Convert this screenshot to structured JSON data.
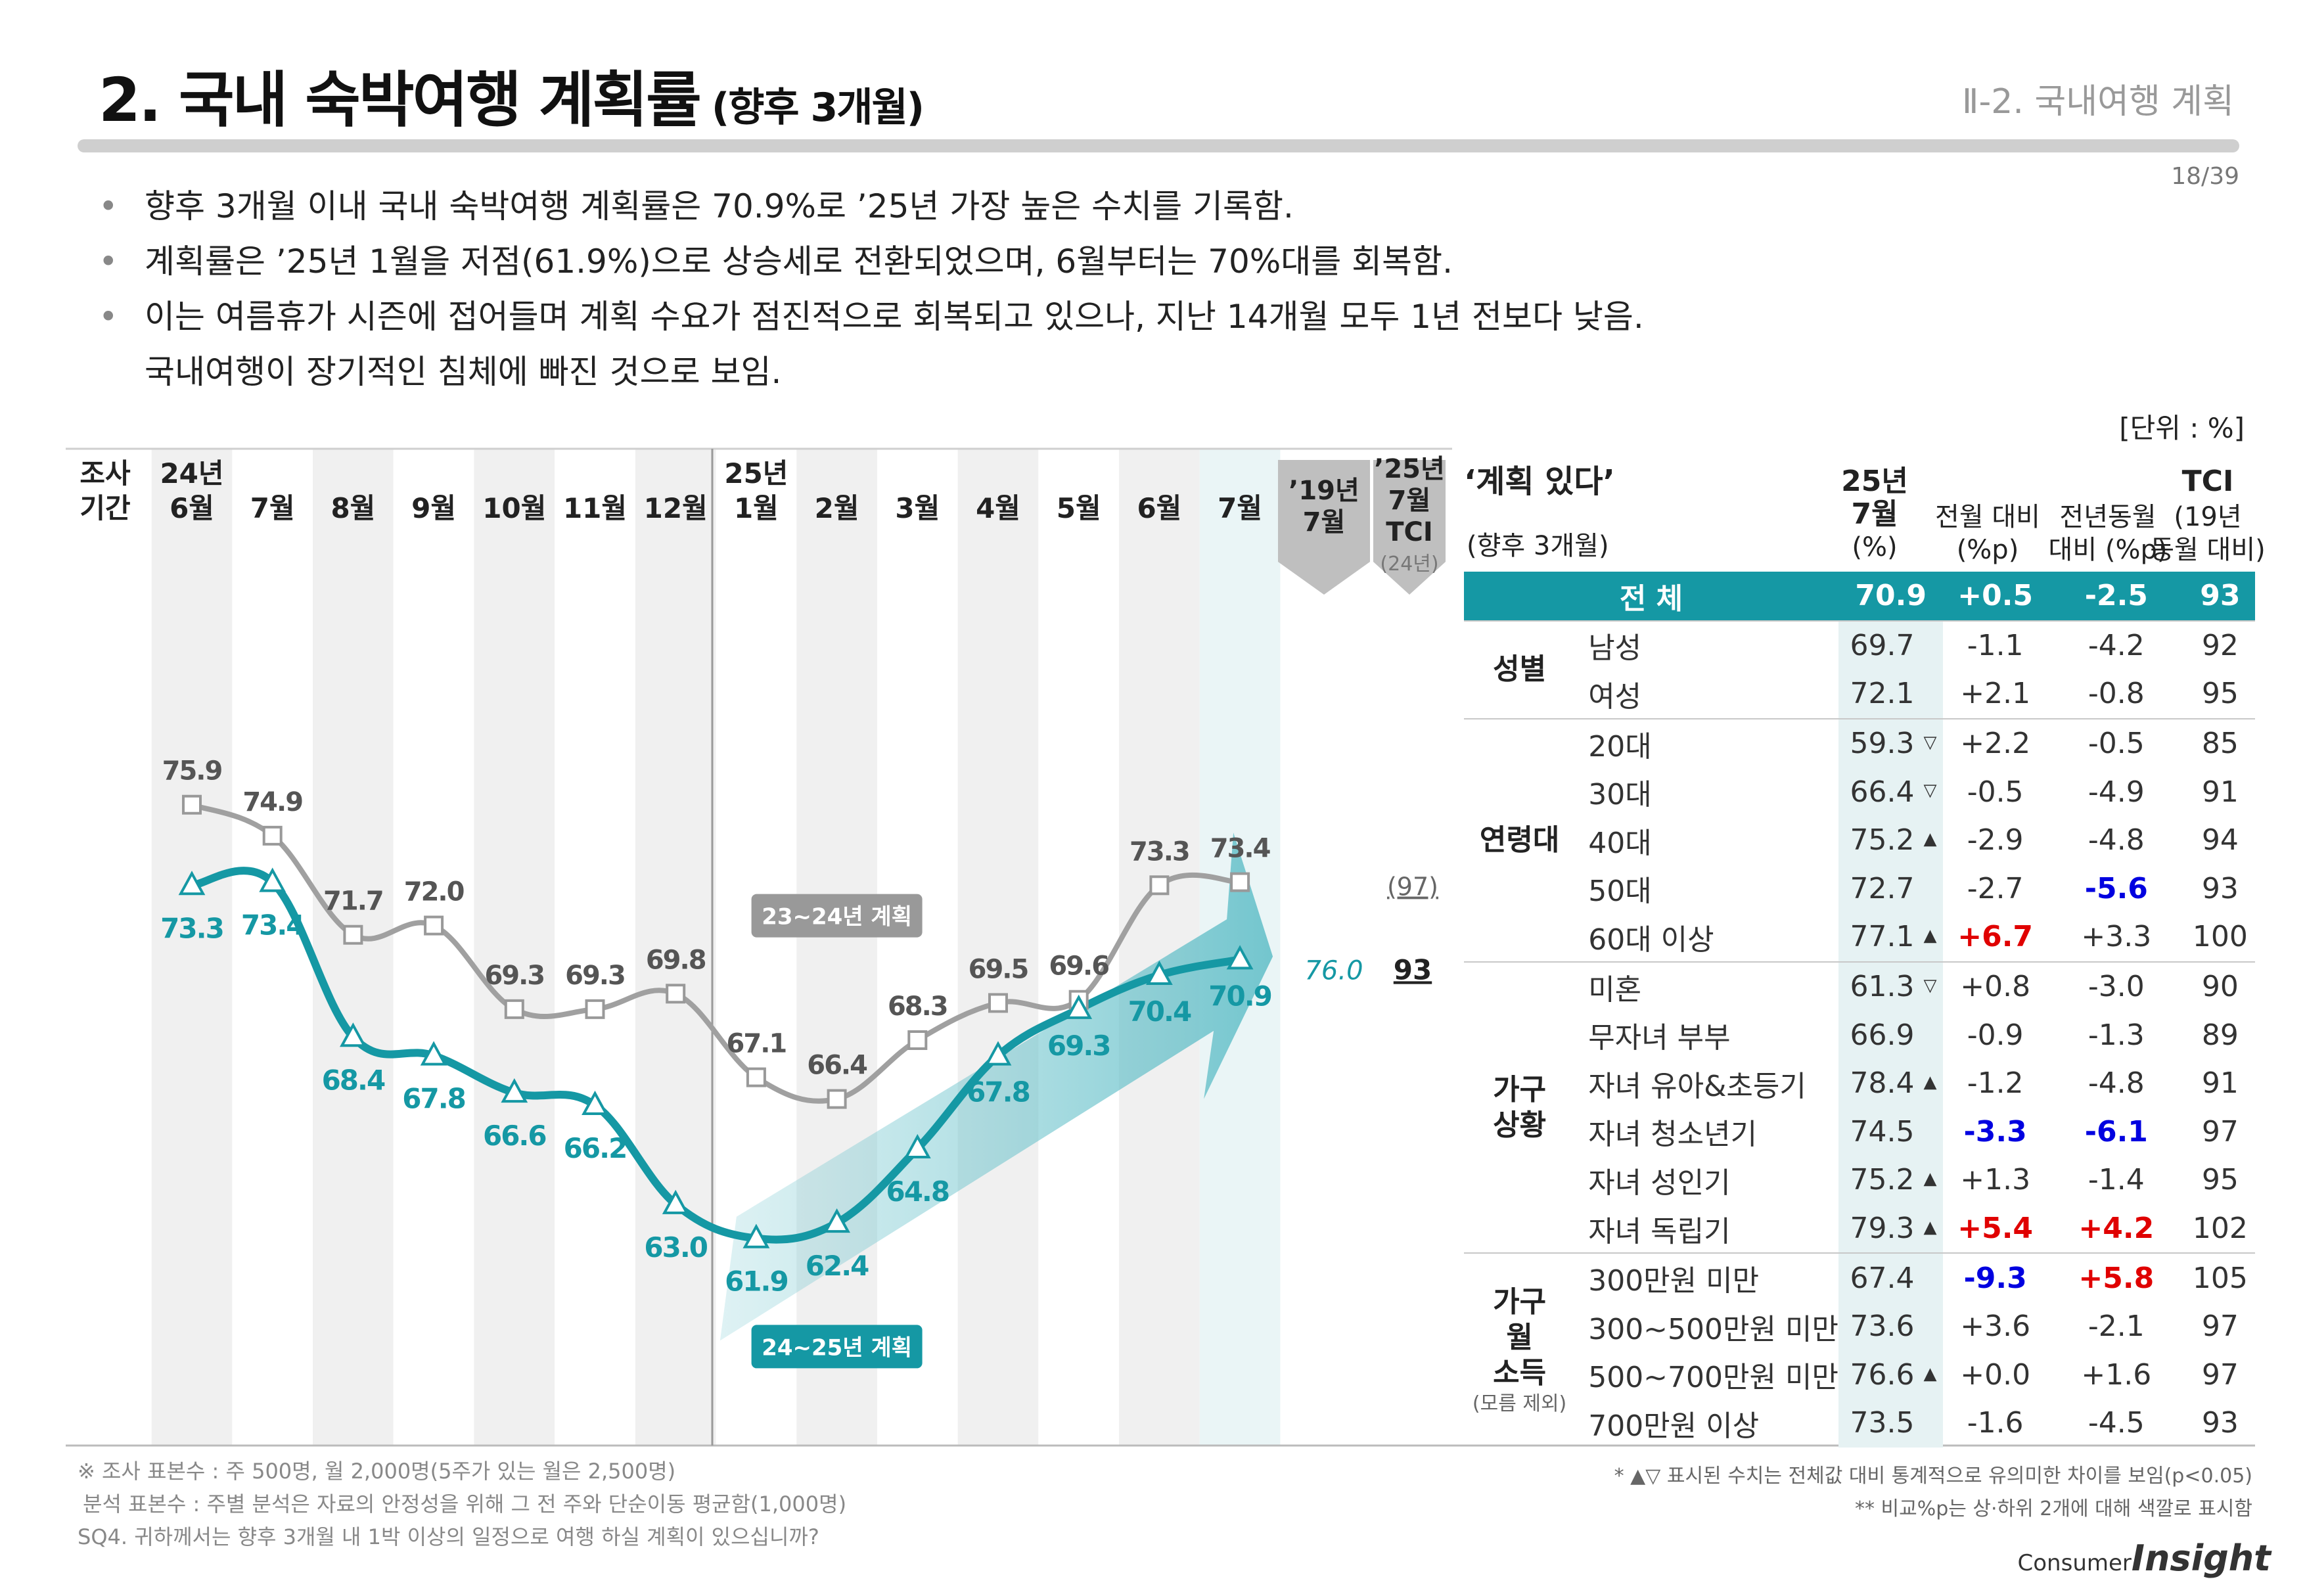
{
  "header": {
    "title": "2. 국내 숙박여행 계획률",
    "subtitle": "(향후 3개월)",
    "section": "Ⅱ-2. 국내여행 계획",
    "page": "18/39"
  },
  "bullets": [
    "향후 3개월 이내 국내 숙박여행 계획률은 70.9%로 ’25년 가장 높은 수치를 기록함.",
    "계획률은 ’25년 1월을 저점(61.9%)으로 상승세로 전환되었으며, 6월부터는 70%대를 회복함.",
    "이는 여름휴가 시즌에 접어들며 계획 수요가 점진적으로 회복되고 있으나, 지난 14개월 모두 1년 전보다 낮음.",
    "국내여행이 장기적인 침체에 빠진 것으로 보임."
  ],
  "unit": "[단위 : %]",
  "chart_data": {
    "type": "line",
    "period_label_1": "조사",
    "period_label_2": "기간",
    "categories": [
      {
        "year": "24년",
        "month": "6월"
      },
      {
        "year": "",
        "month": "7월"
      },
      {
        "year": "",
        "month": "8월"
      },
      {
        "year": "",
        "month": "9월"
      },
      {
        "year": "",
        "month": "10월"
      },
      {
        "year": "",
        "month": "11월"
      },
      {
        "year": "",
        "month": "12월"
      },
      {
        "year": "25년",
        "month": "1월"
      },
      {
        "year": "",
        "month": "2월"
      },
      {
        "year": "",
        "month": "3월"
      },
      {
        "year": "",
        "month": "4월"
      },
      {
        "year": "",
        "month": "5월"
      },
      {
        "year": "",
        "month": "6월"
      },
      {
        "year": "",
        "month": "7월"
      }
    ],
    "series": [
      {
        "name": "23~24년 계획",
        "color": "#a0a0a0",
        "values": [
          75.9,
          74.9,
          71.7,
          72.0,
          69.3,
          69.3,
          69.8,
          67.1,
          66.4,
          68.3,
          69.5,
          69.6,
          73.3,
          73.4
        ],
        "labels": [
          "75.9",
          "74.9",
          "71.7",
          "72.0",
          "69.3",
          "69.3",
          "69.8",
          "67.1",
          "66.4",
          "68.3",
          "69.5",
          "69.6",
          "73.3",
          "73.4"
        ]
      },
      {
        "name": "24~25년 계획",
        "color": "#1598a4",
        "values": [
          73.3,
          73.4,
          68.4,
          67.8,
          66.6,
          66.2,
          63.0,
          61.9,
          62.4,
          64.8,
          67.8,
          69.3,
          70.4,
          70.9
        ],
        "labels": [
          "73.3",
          "73.4",
          "68.4",
          "67.8",
          "66.6",
          "66.2",
          "63.0",
          "61.9",
          "62.4",
          "64.8",
          "67.8",
          "69.3",
          "70.4",
          "70.9"
        ]
      }
    ],
    "compare_col": {
      "header_1": "’19년",
      "header_2": "7월",
      "value": 76.0,
      "label": "76.0"
    },
    "tci_col": {
      "header_1": "’25년",
      "header_2": "7월",
      "header_3": "TCI",
      "note": "(24년)",
      "prev": "(97)",
      "value": "93"
    },
    "ylim": [
      58,
      80
    ]
  },
  "table": {
    "title": "‘계획 있다’",
    "title_sub": "(향후 3개월)",
    "headers": {
      "c1_a": "25년",
      "c1_b": "7월",
      "c1_c": "(%)",
      "c2_a": "전월 대비",
      "c2_b": "(%p)",
      "c3_a": "전년동월",
      "c3_b": "대비 (%p)",
      "c4_a": "TCI",
      "c4_b": "(19년",
      "c4_c": "동월 대비)"
    },
    "total": {
      "label": "전 체",
      "value": "70.9",
      "mom": "+0.5",
      "yoy": "-2.5",
      "tci": "93"
    },
    "groups": [
      {
        "name": "성별",
        "rows": [
          {
            "item": "남성",
            "value": "69.7",
            "mark": "",
            "mom": "-1.1",
            "yoy": "-4.2",
            "tci": "92"
          },
          {
            "item": "여성",
            "value": "72.1",
            "mark": "",
            "mom": "+2.1",
            "yoy": "-0.8",
            "tci": "95"
          }
        ]
      },
      {
        "name": "연령대",
        "rows": [
          {
            "item": "20대",
            "value": "59.3",
            "mark": "▽",
            "mom": "+2.2",
            "yoy": "-0.5",
            "tci": "85"
          },
          {
            "item": "30대",
            "value": "66.4",
            "mark": "▽",
            "mom": "-0.5",
            "yoy": "-4.9",
            "tci": "91"
          },
          {
            "item": "40대",
            "value": "75.2",
            "mark": "▲",
            "mom": "-2.9",
            "yoy": "-4.8",
            "tci": "94"
          },
          {
            "item": "50대",
            "value": "72.7",
            "mark": "",
            "mom": "-2.7",
            "yoy": "-5.6",
            "yoy_color": "blue",
            "tci": "93"
          },
          {
            "item": "60대 이상",
            "value": "77.1",
            "mark": "▲",
            "mom": "+6.7",
            "mom_color": "red",
            "yoy": "+3.3",
            "tci": "100"
          }
        ]
      },
      {
        "name": "가구 상황",
        "rows": [
          {
            "item": "미혼",
            "value": "61.3",
            "mark": "▽",
            "mom": "+0.8",
            "yoy": "-3.0",
            "tci": "90"
          },
          {
            "item": "무자녀 부부",
            "value": "66.9",
            "mark": "",
            "mom": "-0.9",
            "yoy": "-1.3",
            "tci": "89"
          },
          {
            "item": "자녀 유아&초등기",
            "value": "78.4",
            "mark": "▲",
            "mom": "-1.2",
            "yoy": "-4.8",
            "tci": "91"
          },
          {
            "item": "자녀 청소년기",
            "value": "74.5",
            "mark": "",
            "mom": "-3.3",
            "mom_color": "blue",
            "yoy": "-6.1",
            "yoy_color": "blue",
            "tci": "97"
          },
          {
            "item": "자녀 성인기",
            "value": "75.2",
            "mark": "▲",
            "mom": "+1.3",
            "yoy": "-1.4",
            "tci": "95"
          },
          {
            "item": "자녀 독립기",
            "value": "79.3",
            "mark": "▲",
            "mom": "+5.4",
            "mom_color": "red",
            "yoy": "+4.2",
            "yoy_color": "red",
            "tci": "102"
          }
        ]
      },
      {
        "name": "가구 월 소득",
        "note": "(모름 제외)",
        "rows": [
          {
            "item": "300만원 미만",
            "value": "67.4",
            "mark": "",
            "mom": "-9.3",
            "mom_color": "blue",
            "yoy": "+5.8",
            "yoy_color": "red",
            "tci": "105"
          },
          {
            "item": "300~500만원 미만",
            "value": "73.6",
            "mark": "",
            "mom": "+3.6",
            "yoy": "-2.1",
            "tci": "97"
          },
          {
            "item": "500~700만원 미만",
            "value": "76.6",
            "mark": "▲",
            "mom": "+0.0",
            "yoy": "+1.6",
            "tci": "97"
          },
          {
            "item": "700만원 이상",
            "value": "73.5",
            "mark": "",
            "mom": "-1.6",
            "yoy": "-4.5",
            "tci": "93"
          }
        ]
      }
    ]
  },
  "footnotes": {
    "left": [
      "※ 조사 표본수 : 주 500명, 월 2,000명(5주가 있는 월은 2,500명)",
      "분석 표본수 : 주별 분석은 자료의 안정성을 위해 그 전 주와 단순이동 평균함(1,000명)",
      "SQ4. 귀하께서는 향후 3개월 내 1박 이상의 일정으로 여행 하실 계획이 있으십니까?"
    ],
    "right": [
      "* ▲▽ 표시된 수치는 전체값 대비 통계적으로 유의미한 차이를 보임(p<0.05)",
      "** 비교%p는 상·하위 2개에 대해 색깔로 표시함"
    ]
  },
  "brand": {
    "consumer": "Consumer",
    "insight": "Insight"
  },
  "colors": {
    "accent": "#1598a4",
    "grey_series": "#a0a0a0",
    "red": "#e00000",
    "blue": "#0000e0"
  }
}
